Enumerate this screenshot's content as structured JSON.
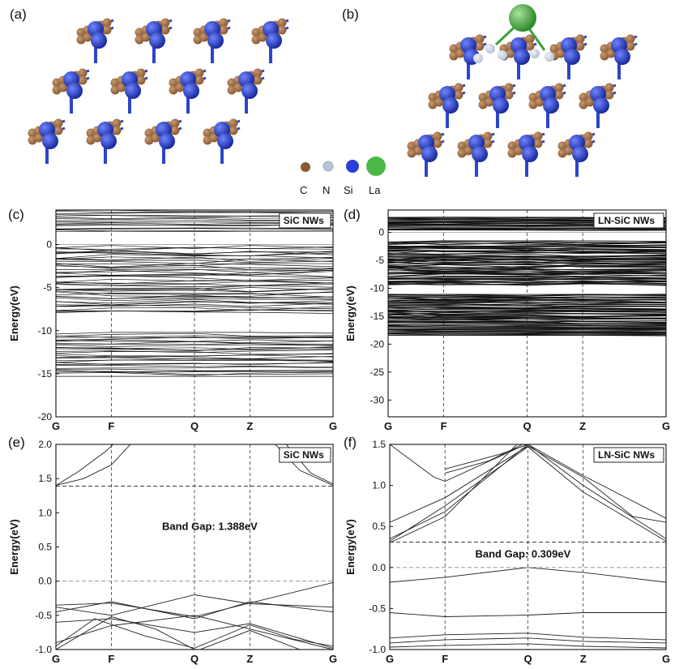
{
  "structures": [
    {
      "label": "(a)"
    },
    {
      "label": "(b)"
    }
  ],
  "atom_legend": [
    {
      "symbol": "C",
      "color": "#8B5A33"
    },
    {
      "symbol": "N",
      "color": "#B8C4D6"
    },
    {
      "symbol": "Si",
      "color": "#2A3FD6"
    },
    {
      "symbol": "La",
      "color": "#4DB848"
    }
  ],
  "chart_data": [
    {
      "panel": "(c)",
      "type": "line",
      "legend": "SiC NWs",
      "ylabel": "Energy(eV)",
      "ylim": [
        -20,
        4
      ],
      "yticks": [
        -20,
        -15,
        -10,
        -5,
        0,
        5
      ],
      "kpoints": [
        "G",
        "F",
        "Q",
        "Z",
        "G"
      ],
      "kpos": [
        0,
        1,
        2.5,
        3.5,
        5
      ],
      "bands": {
        "conduction": [
          1.4,
          4
        ],
        "valence": [
          [
            -8,
            -0.1
          ],
          [
            -15.3,
            -10.2
          ]
        ]
      }
    },
    {
      "panel": "(d)",
      "type": "line",
      "legend": "LN-SiC NWs",
      "ylabel": "Energy(eV)",
      "ylim": [
        -33,
        4
      ],
      "yticks": [
        -30,
        -25,
        -20,
        -15,
        -10,
        -5,
        0
      ],
      "kpoints": [
        "G",
        "F",
        "Q",
        "Z",
        "G"
      ],
      "kpos": [
        0,
        1,
        2.5,
        3.5,
        5
      ],
      "bands": {
        "conduction": [
          0.3,
          2.8
        ],
        "valence": [
          [
            -9.5,
            -1.5
          ],
          [
            -16.5,
            -11
          ],
          [
            -18.5,
            -16.5
          ]
        ]
      }
    },
    {
      "panel": "(e)",
      "type": "line",
      "legend": "SiC NWs",
      "ylabel": "Energy(eV)",
      "ylim": [
        -1.0,
        2.0
      ],
      "yticks": [
        -1.0,
        -0.5,
        0.0,
        0.5,
        1.0,
        1.5,
        2.0
      ],
      "kpoints": [
        "G",
        "F",
        "Q",
        "Z",
        "G"
      ],
      "kpos": [
        0,
        1,
        2.5,
        3.5,
        5
      ],
      "cbm": 1.388,
      "vbm": 0.0,
      "annotation": "Band Gap: 1.388eV",
      "conduction_bands": [
        [
          [
            0,
            1.4
          ],
          [
            0.5,
            1.5
          ],
          [
            1.0,
            1.7
          ],
          [
            1.4,
            2.05
          ]
        ],
        [
          [
            0,
            1.4
          ],
          [
            0.4,
            1.6
          ],
          [
            0.9,
            1.9
          ],
          [
            1.1,
            2.05
          ]
        ],
        [
          [
            3.9,
            2.05
          ],
          [
            4.4,
            1.62
          ],
          [
            5.0,
            1.4
          ]
        ],
        [
          [
            4.1,
            2.05
          ],
          [
            4.6,
            1.58
          ],
          [
            5.0,
            1.42
          ]
        ]
      ],
      "valence_bands": [
        [
          [
            0,
            -0.35
          ],
          [
            1.0,
            -0.32
          ],
          [
            2.5,
            -0.52
          ],
          [
            3.5,
            -0.32
          ],
          [
            5.0,
            -0.02
          ]
        ],
        [
          [
            0,
            -0.38
          ],
          [
            1.0,
            -0.5
          ],
          [
            2.5,
            -0.2
          ],
          [
            3.5,
            -0.33
          ],
          [
            5.0,
            -0.38
          ]
        ],
        [
          [
            0,
            -0.45
          ],
          [
            1.0,
            -0.3
          ],
          [
            2.5,
            -0.55
          ],
          [
            3.5,
            -0.3
          ],
          [
            5.0,
            -0.45
          ]
        ],
        [
          [
            0,
            -0.6
          ],
          [
            1.0,
            -0.55
          ],
          [
            2.5,
            -0.75
          ],
          [
            3.5,
            -0.62
          ],
          [
            5.0,
            -0.98
          ]
        ],
        [
          [
            0,
            -0.9
          ],
          [
            1.0,
            -0.65
          ],
          [
            2.5,
            -0.5
          ],
          [
            3.5,
            -0.7
          ],
          [
            5.0,
            -1.0
          ]
        ],
        [
          [
            0,
            -0.95
          ],
          [
            0.7,
            -0.55
          ],
          [
            1.6,
            -0.8
          ],
          [
            2.5,
            -0.98
          ],
          [
            3.5,
            -0.64
          ],
          [
            4.3,
            -0.85
          ],
          [
            5.0,
            -0.95
          ]
        ],
        [
          [
            0,
            -1.0
          ],
          [
            1.0,
            -0.52
          ],
          [
            1.8,
            -0.7
          ],
          [
            2.5,
            -1.0
          ]
        ],
        [
          [
            2.6,
            -1.0
          ],
          [
            3.5,
            -0.72
          ],
          [
            4.4,
            -1.0
          ]
        ]
      ]
    },
    {
      "panel": "(f)",
      "type": "line",
      "legend": "LN-SiC NWs",
      "ylabel": "Energy(eV)",
      "ylim": [
        -1.0,
        1.5
      ],
      "yticks": [
        -1.0,
        -0.5,
        0.0,
        0.5,
        1.0,
        1.5
      ],
      "kpoints": [
        "G",
        "F",
        "Q",
        "Z",
        "G"
      ],
      "kpos": [
        0,
        1,
        2.5,
        3.5,
        5
      ],
      "cbm": 0.309,
      "vbm": 0.0,
      "annotation": "Band Gap: 0.309eV",
      "conduction_bands": [
        [
          [
            0,
            0.32
          ],
          [
            1.0,
            0.75
          ],
          [
            2.5,
            1.47
          ],
          [
            3.5,
            0.92
          ],
          [
            5.0,
            0.32
          ]
        ],
        [
          [
            0,
            0.35
          ],
          [
            1.0,
            0.68
          ],
          [
            2.5,
            1.5
          ],
          [
            3.5,
            1.0
          ],
          [
            5.0,
            0.35
          ]
        ],
        [
          [
            0,
            0.55
          ],
          [
            1.0,
            0.85
          ],
          [
            2.5,
            1.48
          ],
          [
            3.5,
            1.1
          ],
          [
            4.4,
            0.62
          ],
          [
            5.0,
            0.55
          ]
        ],
        [
          [
            0,
            0.3
          ],
          [
            1.0,
            0.62
          ],
          [
            2.3,
            1.5
          ]
        ],
        [
          [
            0,
            1.5
          ],
          [
            0.8,
            1.1
          ],
          [
            1.0,
            1.05
          ],
          [
            2.3,
            1.45
          ],
          [
            2.5,
            1.5
          ]
        ],
        [
          [
            1.0,
            1.15
          ],
          [
            1.8,
            1.3
          ],
          [
            2.4,
            1.5
          ]
        ],
        [
          [
            1.0,
            1.2
          ],
          [
            2.0,
            1.38
          ],
          [
            2.5,
            1.5
          ],
          [
            3.5,
            1.12
          ],
          [
            5.0,
            0.6
          ]
        ]
      ],
      "valence_bands": [
        [
          [
            0,
            -0.18
          ],
          [
            1.0,
            -0.12
          ],
          [
            2.5,
            0.0
          ],
          [
            3.5,
            -0.06
          ],
          [
            5.0,
            -0.18
          ]
        ],
        [
          [
            0,
            -0.55
          ],
          [
            1.0,
            -0.6
          ],
          [
            2.5,
            -0.58
          ],
          [
            3.5,
            -0.55
          ],
          [
            5.0,
            -0.55
          ]
        ],
        [
          [
            0,
            -0.86
          ],
          [
            1.0,
            -0.82
          ],
          [
            2.5,
            -0.8
          ],
          [
            3.5,
            -0.85
          ],
          [
            5.0,
            -0.88
          ]
        ],
        [
          [
            0,
            -0.92
          ],
          [
            1.0,
            -0.88
          ],
          [
            2.5,
            -0.86
          ],
          [
            3.5,
            -0.9
          ],
          [
            5.0,
            -0.92
          ]
        ],
        [
          [
            0,
            -0.97
          ],
          [
            1.0,
            -0.95
          ],
          [
            2.5,
            -0.93
          ],
          [
            3.5,
            -0.96
          ],
          [
            5.0,
            -0.98
          ]
        ]
      ]
    }
  ]
}
